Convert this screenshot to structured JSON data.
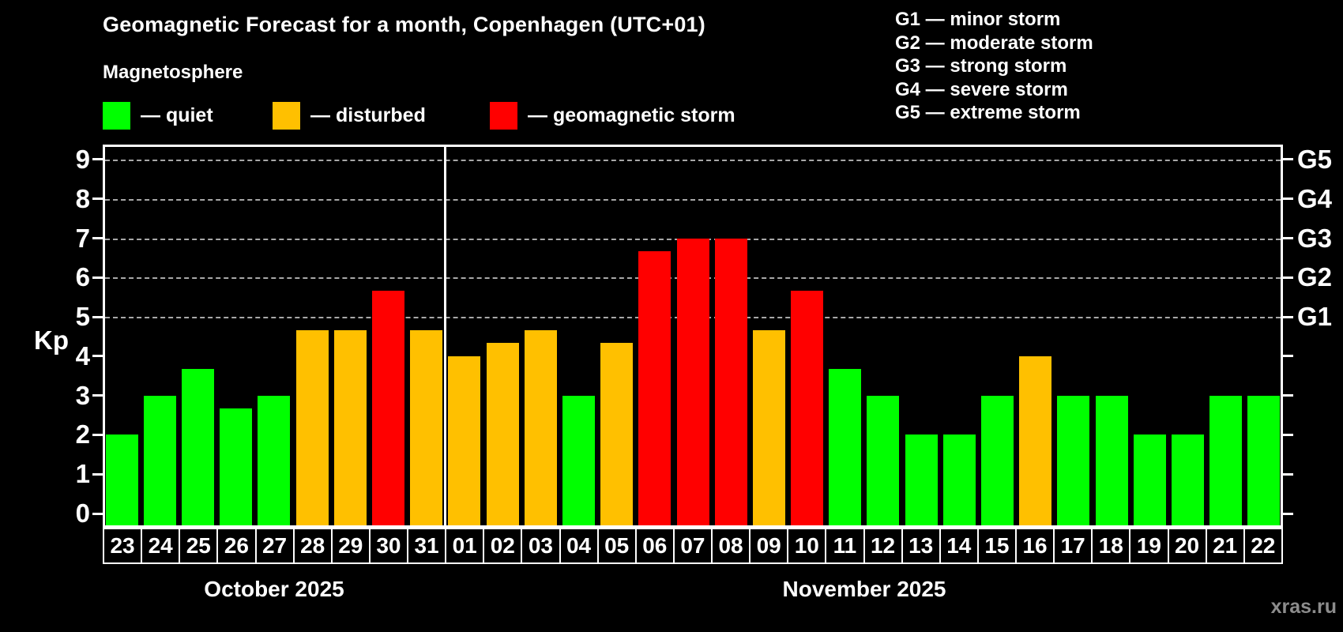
{
  "header": {
    "title": "Geomagnetic Forecast for a month, Copenhagen (UTC+01)",
    "subtitle": "Magnetosphere"
  },
  "watermark": "xras.ru",
  "colors": {
    "quiet": "#00ff00",
    "disturbed": "#ffc000",
    "storm": "#ff0000",
    "background": "#000000",
    "grid": "#a8a8a8",
    "text": "#ffffff",
    "watermark": "#8c8c8c"
  },
  "legend": [
    {
      "status": "quiet",
      "label": "— quiet",
      "color": "#00ff00"
    },
    {
      "status": "disturbed",
      "label": "— disturbed",
      "color": "#ffc000"
    },
    {
      "status": "storm",
      "label": "— geomagnetic storm",
      "color": "#ff0000"
    }
  ],
  "g_scale_legend": [
    "G1 — minor storm",
    "G2 — moderate storm",
    "G3 — strong storm",
    "G4 — severe storm",
    "G5 — extreme storm"
  ],
  "chart_data": {
    "type": "bar",
    "title": "Geomagnetic Forecast for a month, Copenhagen (UTC+01)",
    "ylabel": "Kp",
    "ylim": [
      0,
      9
    ],
    "y_ticks": [
      0,
      1,
      2,
      3,
      4,
      5,
      6,
      7,
      8,
      9
    ],
    "gridlines_at": [
      5,
      6,
      7,
      8,
      9
    ],
    "right_axis_labels": [
      {
        "value": 5,
        "label": "G1"
      },
      {
        "value": 6,
        "label": "G2"
      },
      {
        "value": 7,
        "label": "G3"
      },
      {
        "value": 8,
        "label": "G4"
      },
      {
        "value": 9,
        "label": "G5"
      }
    ],
    "months": [
      {
        "label": "October 2025",
        "days_count": 9
      },
      {
        "label": "November 2025",
        "days_count": 22
      }
    ],
    "days": [
      {
        "day": "23",
        "month": "October 2025",
        "kp": 2,
        "status": "quiet"
      },
      {
        "day": "24",
        "month": "October 2025",
        "kp": 3,
        "status": "quiet"
      },
      {
        "day": "25",
        "month": "October 2025",
        "kp": 3.67,
        "status": "quiet"
      },
      {
        "day": "26",
        "month": "October 2025",
        "kp": 2.67,
        "status": "quiet"
      },
      {
        "day": "27",
        "month": "October 2025",
        "kp": 3,
        "status": "quiet"
      },
      {
        "day": "28",
        "month": "October 2025",
        "kp": 4.67,
        "status": "disturbed"
      },
      {
        "day": "29",
        "month": "October 2025",
        "kp": 4.67,
        "status": "disturbed"
      },
      {
        "day": "30",
        "month": "October 2025",
        "kp": 5.67,
        "status": "storm"
      },
      {
        "day": "31",
        "month": "October 2025",
        "kp": 4.67,
        "status": "disturbed"
      },
      {
        "day": "01",
        "month": "November 2025",
        "kp": 4,
        "status": "disturbed"
      },
      {
        "day": "02",
        "month": "November 2025",
        "kp": 4.33,
        "status": "disturbed"
      },
      {
        "day": "03",
        "month": "November 2025",
        "kp": 4.67,
        "status": "disturbed"
      },
      {
        "day": "04",
        "month": "November 2025",
        "kp": 3,
        "status": "quiet"
      },
      {
        "day": "05",
        "month": "November 2025",
        "kp": 4.33,
        "status": "disturbed"
      },
      {
        "day": "06",
        "month": "November 2025",
        "kp": 6.67,
        "status": "storm"
      },
      {
        "day": "07",
        "month": "November 2025",
        "kp": 7,
        "status": "storm"
      },
      {
        "day": "08",
        "month": "November 2025",
        "kp": 7,
        "status": "storm"
      },
      {
        "day": "09",
        "month": "November 2025",
        "kp": 4.67,
        "status": "disturbed"
      },
      {
        "day": "10",
        "month": "November 2025",
        "kp": 5.67,
        "status": "storm"
      },
      {
        "day": "11",
        "month": "November 2025",
        "kp": 3.67,
        "status": "quiet"
      },
      {
        "day": "12",
        "month": "November 2025",
        "kp": 3,
        "status": "quiet"
      },
      {
        "day": "13",
        "month": "November 2025",
        "kp": 2,
        "status": "quiet"
      },
      {
        "day": "14",
        "month": "November 2025",
        "kp": 2,
        "status": "quiet"
      },
      {
        "day": "15",
        "month": "November 2025",
        "kp": 3,
        "status": "quiet"
      },
      {
        "day": "16",
        "month": "November 2025",
        "kp": 4,
        "status": "disturbed"
      },
      {
        "day": "17",
        "month": "November 2025",
        "kp": 3,
        "status": "quiet"
      },
      {
        "day": "18",
        "month": "November 2025",
        "kp": 3,
        "status": "quiet"
      },
      {
        "day": "19",
        "month": "November 2025",
        "kp": 2,
        "status": "quiet"
      },
      {
        "day": "20",
        "month": "November 2025",
        "kp": 2,
        "status": "quiet"
      },
      {
        "day": "21",
        "month": "November 2025",
        "kp": 3,
        "status": "quiet"
      },
      {
        "day": "22",
        "month": "November 2025",
        "kp": 3,
        "status": "quiet"
      }
    ]
  }
}
